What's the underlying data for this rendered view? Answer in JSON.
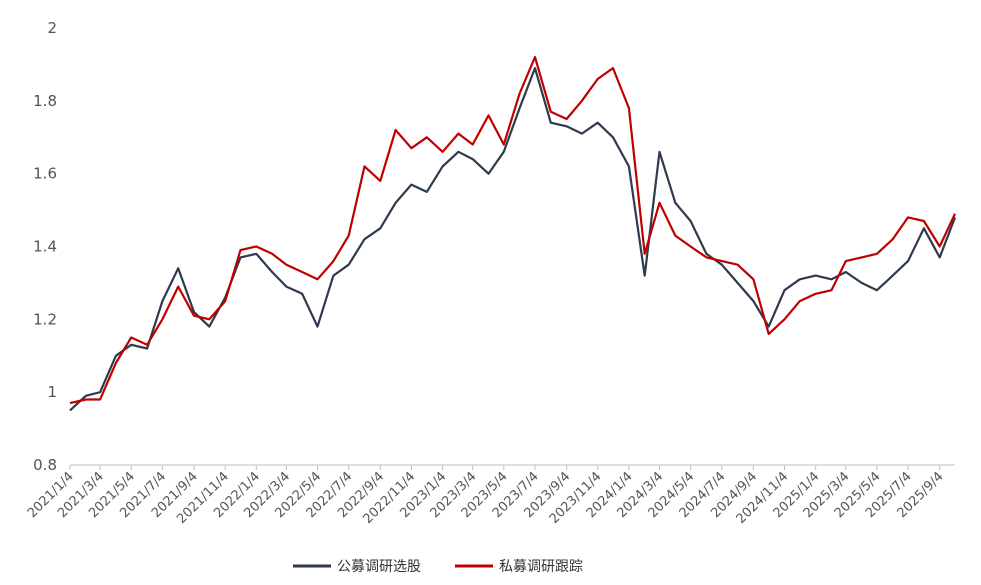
{
  "chart_data": {
    "type": "line",
    "title": "",
    "xlabel": "",
    "ylabel": "",
    "ylim": [
      0.8,
      2.0
    ],
    "yticks": [
      "0.8",
      "1",
      "1.2",
      "1.4",
      "1.6",
      "1.8",
      "2"
    ],
    "xticks": [
      "2021/1/4",
      "2021/3/4",
      "2021/5/4",
      "2021/7/4",
      "2021/9/4",
      "2021/11/4",
      "2022/1/4",
      "2022/3/4",
      "2022/5/4",
      "2022/7/4",
      "2022/9/4",
      "2022/11/4",
      "2023/1/4",
      "2023/3/4",
      "2023/5/4",
      "2023/7/4",
      "2023/9/4",
      "2023/11/4",
      "2024/1/4",
      "2024/3/4",
      "2024/5/4",
      "2024/7/4",
      "2024/9/4",
      "2024/11/4",
      "2025/1/4",
      "2025/3/4",
      "2025/5/4",
      "2025/7/4",
      "2025/9/4"
    ],
    "grid": false,
    "legend_position": "bottom-center",
    "x": [
      "2021/1/4",
      "2021/2/4",
      "2021/3/4",
      "2021/4/4",
      "2021/5/4",
      "2021/6/4",
      "2021/7/4",
      "2021/8/4",
      "2021/9/4",
      "2021/10/4",
      "2021/11/4",
      "2021/12/4",
      "2022/1/4",
      "2022/2/4",
      "2022/3/4",
      "2022/4/4",
      "2022/5/4",
      "2022/6/4",
      "2022/7/4",
      "2022/8/4",
      "2022/9/4",
      "2022/10/4",
      "2022/11/4",
      "2022/12/4",
      "2023/1/4",
      "2023/2/4",
      "2023/3/4",
      "2023/4/4",
      "2023/5/4",
      "2023/6/4",
      "2023/7/4",
      "2023/8/4",
      "2023/9/4",
      "2023/10/4",
      "2023/11/4",
      "2023/12/4",
      "2024/1/4",
      "2024/2/4",
      "2024/3/4",
      "2024/4/4",
      "2024/5/4",
      "2024/6/4",
      "2024/7/4",
      "2024/8/4",
      "2024/9/4",
      "2024/10/4",
      "2024/11/4",
      "2024/12/4",
      "2025/1/4",
      "2025/2/4",
      "2025/3/4",
      "2025/4/4",
      "2025/5/4",
      "2025/6/4",
      "2025/7/4",
      "2025/8/4",
      "2025/9/4",
      "2025/10/4"
    ],
    "series": [
      {
        "name": "公募调研选股",
        "color": "#2e3a4d",
        "values": [
          0.95,
          0.99,
          1.0,
          1.1,
          1.13,
          1.12,
          1.25,
          1.34,
          1.22,
          1.18,
          1.26,
          1.37,
          1.38,
          1.33,
          1.29,
          1.27,
          1.18,
          1.32,
          1.35,
          1.42,
          1.45,
          1.52,
          1.57,
          1.55,
          1.62,
          1.66,
          1.64,
          1.6,
          1.66,
          1.78,
          1.89,
          1.74,
          1.73,
          1.71,
          1.74,
          1.7,
          1.62,
          1.32,
          1.66,
          1.52,
          1.47,
          1.38,
          1.35,
          1.3,
          1.25,
          1.18,
          1.28,
          1.31,
          1.32,
          1.31,
          1.33,
          1.3,
          1.28,
          1.32,
          1.36,
          1.45,
          1.37,
          1.48
        ]
      },
      {
        "name": "私募调研跟踪",
        "color": "#c00000",
        "values": [
          0.97,
          0.98,
          0.98,
          1.08,
          1.15,
          1.13,
          1.2,
          1.29,
          1.21,
          1.2,
          1.25,
          1.39,
          1.4,
          1.38,
          1.35,
          1.33,
          1.31,
          1.36,
          1.43,
          1.62,
          1.58,
          1.72,
          1.67,
          1.7,
          1.66,
          1.71,
          1.68,
          1.76,
          1.68,
          1.82,
          1.92,
          1.77,
          1.75,
          1.8,
          1.86,
          1.89,
          1.78,
          1.38,
          1.52,
          1.43,
          1.4,
          1.37,
          1.36,
          1.35,
          1.31,
          1.16,
          1.2,
          1.25,
          1.27,
          1.28,
          1.36,
          1.37,
          1.38,
          1.42,
          1.48,
          1.47,
          1.4,
          1.49
        ]
      }
    ]
  }
}
